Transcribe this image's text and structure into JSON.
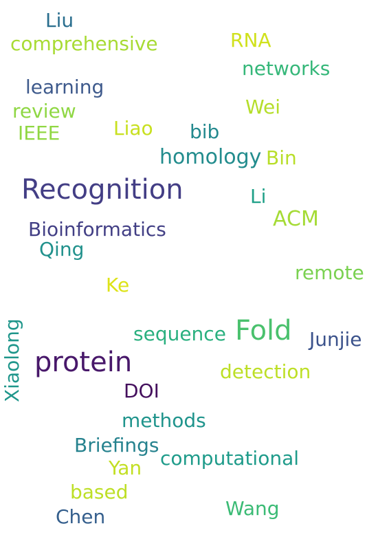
{
  "words": [
    {
      "text": "Liu",
      "color": "#2a6e8e"
    },
    {
      "text": "comprehensive",
      "color": "#a8db34"
    },
    {
      "text": "RNA",
      "color": "#d0e11c"
    },
    {
      "text": "networks",
      "color": "#35b779"
    },
    {
      "text": "learning",
      "color": "#3e5a8c"
    },
    {
      "text": "review",
      "color": "#8fd744"
    },
    {
      "text": "Wei",
      "color": "#b5de2b"
    },
    {
      "text": "IEEE",
      "color": "#90d743"
    },
    {
      "text": "Liao",
      "color": "#c8e020"
    },
    {
      "text": "bib",
      "color": "#23898e"
    },
    {
      "text": "homology",
      "color": "#228c8d"
    },
    {
      "text": "Bin",
      "color": "#b8de29"
    },
    {
      "text": "Recognition",
      "color": "#433e85"
    },
    {
      "text": "Li",
      "color": "#1fa088"
    },
    {
      "text": "ACM",
      "color": "#a5db36"
    },
    {
      "text": "Bioinformatics",
      "color": "#423f85"
    },
    {
      "text": "Qing",
      "color": "#21918c"
    },
    {
      "text": "remote",
      "color": "#7ad151"
    },
    {
      "text": "Ke",
      "color": "#dde318"
    },
    {
      "text": "Fold",
      "color": "#4ac16d"
    },
    {
      "text": "sequence",
      "color": "#2ab07f"
    },
    {
      "text": "Junjie",
      "color": "#3b528b"
    },
    {
      "text": "protein",
      "color": "#48186a"
    },
    {
      "text": "Xiaolong",
      "color": "#1f968b"
    },
    {
      "text": "detection",
      "color": "#bddf26"
    },
    {
      "text": "DOI",
      "color": "#440f5d"
    },
    {
      "text": "methods",
      "color": "#1f948c"
    },
    {
      "text": "Briefings",
      "color": "#26828e"
    },
    {
      "text": "computational",
      "color": "#1e9b8a"
    },
    {
      "text": "Yan",
      "color": "#c2df23"
    },
    {
      "text": "based",
      "color": "#bddf26"
    },
    {
      "text": "Wang",
      "color": "#3bbb75"
    },
    {
      "text": "Chen",
      "color": "#355f8d"
    }
  ]
}
